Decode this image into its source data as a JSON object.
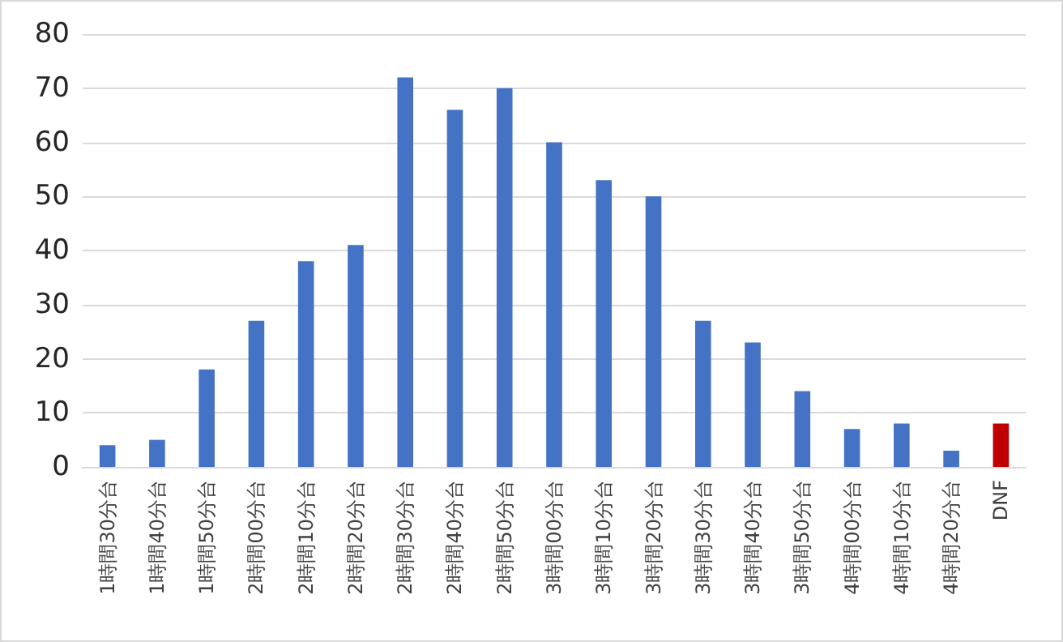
{
  "chart_data": {
    "type": "bar",
    "categories": [
      "1時間30分台",
      "1時間40分台",
      "1時間50分台",
      "2時間00分台",
      "2時間10分台",
      "2時間20分台",
      "2時間30分台",
      "2時間40分台",
      "2時間50分台",
      "3時間00分台",
      "3時間10分台",
      "3時間20分台",
      "3時間30分台",
      "3時間40分台",
      "3時間50分台",
      "4時間00分台",
      "4時間10分台",
      "4時間20分台",
      "DNF"
    ],
    "values": [
      4,
      5,
      18,
      27,
      38,
      41,
      72,
      66,
      70,
      60,
      53,
      50,
      27,
      23,
      14,
      7,
      8,
      3,
      8
    ],
    "colors": [
      "#4472c4",
      "#4472c4",
      "#4472c4",
      "#4472c4",
      "#4472c4",
      "#4472c4",
      "#4472c4",
      "#4472c4",
      "#4472c4",
      "#4472c4",
      "#4472c4",
      "#4472c4",
      "#4472c4",
      "#4472c4",
      "#4472c4",
      "#4472c4",
      "#4472c4",
      "#4472c4",
      "#c00000"
    ],
    "ylim": [
      0,
      80
    ],
    "yticks": [
      0,
      10,
      20,
      30,
      40,
      50,
      60,
      70,
      80
    ],
    "grid": "y"
  }
}
